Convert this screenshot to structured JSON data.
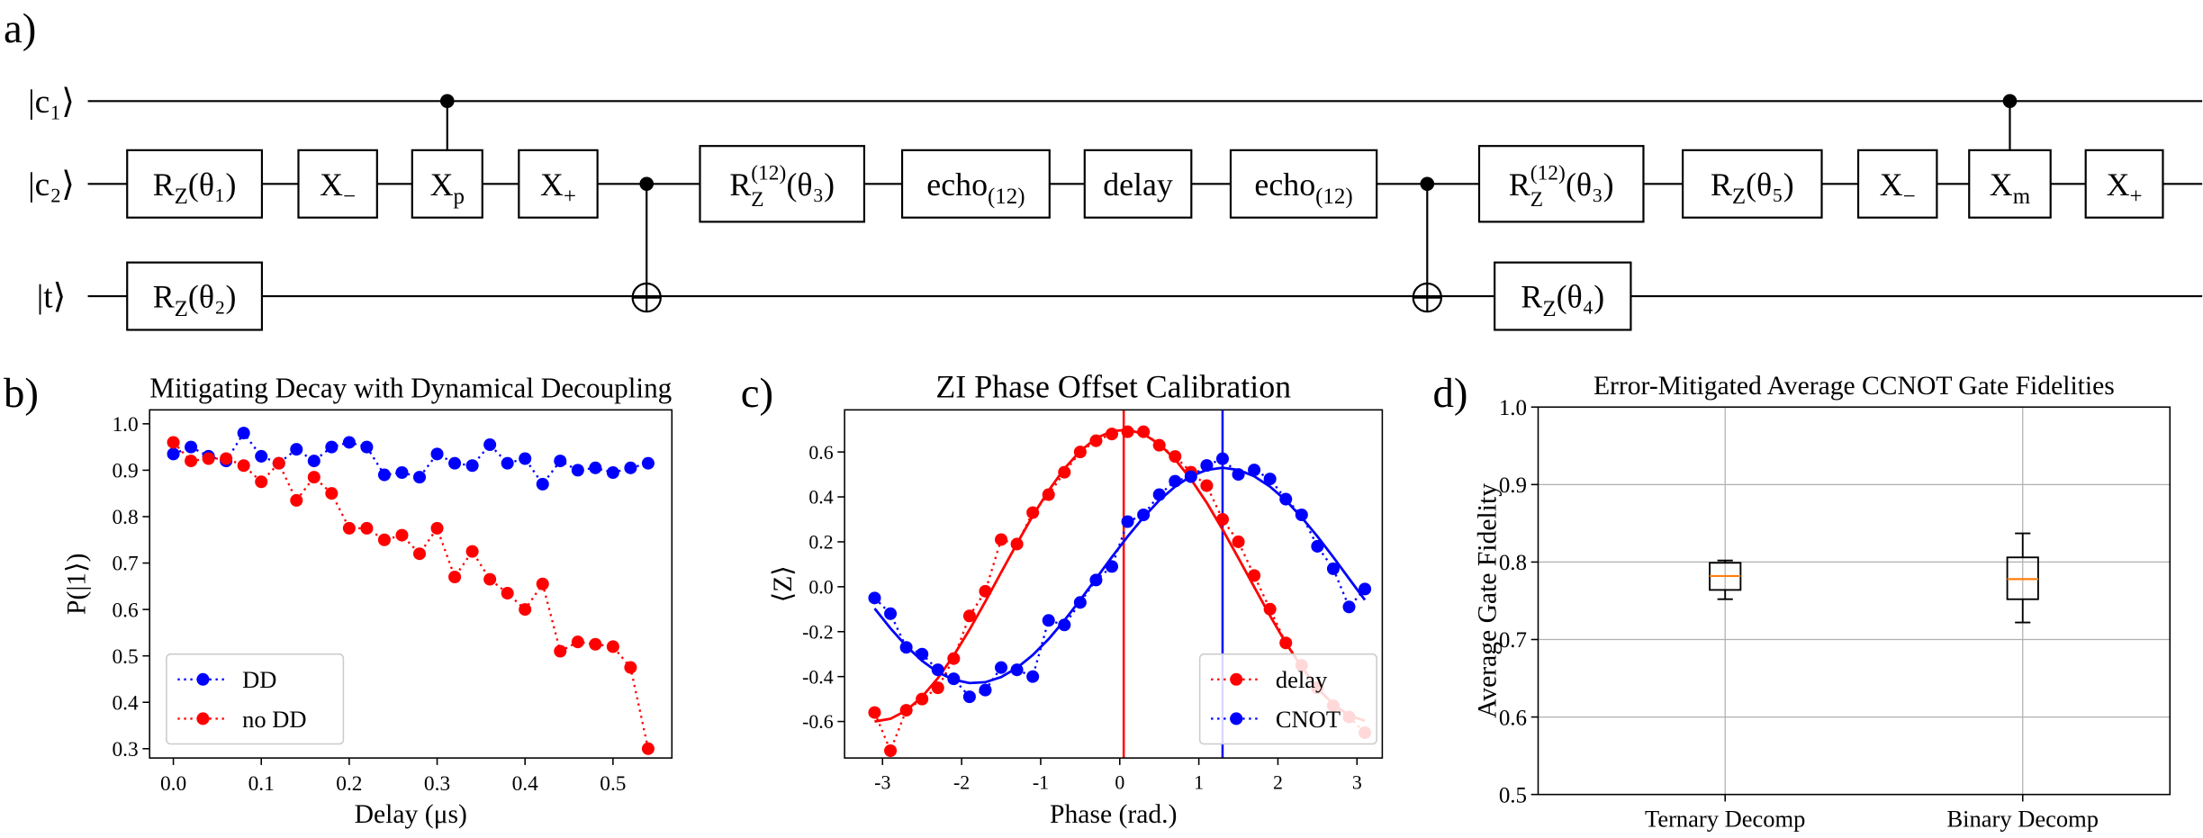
{
  "panel_labels": [
    "a)",
    "b)",
    "c)",
    "d)"
  ],
  "circuit": {
    "wires": [
      "|c₁⟩",
      "|c₂⟩",
      "|t⟩"
    ],
    "gates": [
      {
        "label": "R",
        "sub": "Z",
        "arg": "(θ₁)"
      },
      {
        "label": "X",
        "sub": "−"
      },
      {
        "label": "X",
        "sub": "p"
      },
      {
        "label": "X",
        "sub": "+"
      },
      {
        "label": "R",
        "sup": "(12)",
        "sub": "Z",
        "arg": "(θ₃)"
      },
      {
        "label": "echo",
        "sub": "(12)"
      },
      {
        "label": "delay"
      },
      {
        "label": "echo",
        "sub": "(12)"
      },
      {
        "label": "R",
        "sup": "(12)",
        "sub": "Z",
        "arg": "(θ₃)"
      },
      {
        "label": "R",
        "sub": "Z",
        "arg": "(θ₅)"
      },
      {
        "label": "X",
        "sub": "−"
      },
      {
        "label": "X",
        "sub": "m"
      },
      {
        "label": "X",
        "sub": "+"
      },
      {
        "label": "R",
        "sub": "Z",
        "arg": "(θ₂)"
      },
      {
        "label": "R",
        "sub": "Z",
        "arg": "(θ₄)"
      }
    ]
  },
  "chart_data": [
    {
      "type": "line",
      "title": "Mitigating Decay with Dynamical Decoupling",
      "xlabel": "Delay (μs)",
      "ylabel": "P(|1⟩)",
      "x": [
        0,
        0.02,
        0.04,
        0.06,
        0.08,
        0.1,
        0.12,
        0.14,
        0.16,
        0.18,
        0.2,
        0.22,
        0.24,
        0.26,
        0.28,
        0.3,
        0.32,
        0.34,
        0.36,
        0.38,
        0.4,
        0.42,
        0.44,
        0.46,
        0.48,
        0.5,
        0.52,
        0.54
      ],
      "series": [
        {
          "name": "DD",
          "color": "#0000ff",
          "values": [
            0.935,
            0.95,
            0.93,
            0.92,
            0.98,
            0.93,
            0.915,
            0.945,
            0.92,
            0.95,
            0.96,
            0.95,
            0.89,
            0.895,
            0.885,
            0.935,
            0.915,
            0.91,
            0.955,
            0.915,
            0.925,
            0.87,
            0.92,
            0.9,
            0.905,
            0.895,
            0.905,
            0.915
          ]
        },
        {
          "name": "no DD",
          "color": "#ff0000",
          "values": [
            0.96,
            0.92,
            0.925,
            0.925,
            0.91,
            0.875,
            0.915,
            0.835,
            0.885,
            0.85,
            0.775,
            0.775,
            0.75,
            0.76,
            0.72,
            0.775,
            0.67,
            0.725,
            0.665,
            0.635,
            0.6,
            0.655,
            0.51,
            0.53,
            0.525,
            0.52,
            0.475,
            0.3
          ]
        }
      ],
      "xlim": [
        -0.027,
        0.567
      ],
      "ylim": [
        0.28,
        1.03
      ],
      "xticks": [
        {
          "value": 0,
          "label": "0.0"
        },
        0.1,
        0.2,
        0.3,
        0.4,
        0.5
      ],
      "yticks": [
        0.3,
        0.4,
        0.5,
        0.6,
        0.7,
        0.8,
        0.9,
        {
          "value": 1,
          "label": "1.0"
        }
      ],
      "legend": "lower left"
    },
    {
      "type": "line",
      "title": "ZI Phase Offset Calibration",
      "xlabel": "Phase (rad.)",
      "ylabel": "⟨Z⟩",
      "x": [
        -3.1,
        -2.9,
        -2.7,
        -2.5,
        -2.3,
        -2.1,
        -1.9,
        -1.7,
        -1.5,
        -1.3,
        -1.1,
        -0.9,
        -0.7,
        -0.5,
        -0.3,
        -0.1,
        0.1,
        0.3,
        0.5,
        0.7,
        0.9,
        1.1,
        1.3,
        1.5,
        1.7,
        1.9,
        2.1,
        2.3,
        2.5,
        2.7,
        2.9,
        3.1
      ],
      "series": [
        {
          "name": "delay",
          "color": "#ff0000",
          "values": [
            -0.56,
            -0.73,
            -0.55,
            -0.5,
            -0.45,
            -0.32,
            -0.13,
            -0.02,
            0.21,
            0.19,
            0.33,
            0.41,
            0.51,
            0.6,
            0.65,
            0.68,
            0.69,
            0.69,
            0.63,
            0.58,
            0.51,
            0.45,
            0.3,
            0.2,
            0.05,
            -0.1,
            -0.25,
            -0.35,
            -0.45,
            -0.53,
            -0.58,
            -0.65
          ]
        },
        {
          "name": "CNOT",
          "color": "#0000ff",
          "values": [
            -0.05,
            -0.12,
            -0.27,
            -0.3,
            -0.37,
            -0.41,
            -0.49,
            -0.46,
            -0.36,
            -0.37,
            -0.4,
            -0.15,
            -0.17,
            -0.07,
            0.03,
            0.09,
            0.29,
            0.32,
            0.41,
            0.47,
            0.49,
            0.54,
            0.57,
            0.5,
            0.52,
            0.48,
            0.39,
            0.32,
            0.18,
            0.08,
            -0.09,
            -0.01
          ]
        }
      ],
      "fits": [
        {
          "color": "#ff0000",
          "values": [
            -0.6,
            -0.588,
            -0.551,
            -0.49,
            -0.407,
            -0.306,
            -0.191,
            -0.066,
            0.064,
            0.192,
            0.316,
            0.428,
            0.526,
            0.604,
            0.661,
            0.693,
            0.699,
            0.68,
            0.635,
            0.567,
            0.479,
            0.374,
            0.255,
            0.128,
            -0.001,
            -0.129,
            -0.25,
            -0.358,
            -0.451,
            -0.523,
            -0.573,
            -0.597
          ]
        },
        {
          "color": "#0000ff",
          "values": [
            -0.097,
            -0.185,
            -0.264,
            -0.33,
            -0.381,
            -0.414,
            -0.429,
            -0.425,
            -0.402,
            -0.361,
            -0.304,
            -0.233,
            -0.15,
            -0.059,
            0.036,
            0.132,
            0.224,
            0.309,
            0.385,
            0.446,
            0.492,
            0.52,
            0.53,
            0.52,
            0.492,
            0.446,
            0.385,
            0.309,
            0.224,
            0.132,
            0.036,
            -0.059
          ]
        }
      ],
      "vlines": [
        {
          "value": 0.05,
          "color": "#ff0000"
        },
        {
          "value": 1.3,
          "color": "#0000ff"
        }
      ],
      "xlim": [
        -3.48,
        3.32
      ],
      "ylim": [
        -0.7625,
        0.7875
      ],
      "xticks": [
        -3,
        -2,
        -1,
        0,
        1,
        2,
        3
      ],
      "yticks": [
        -0.6,
        -0.4,
        -0.2,
        {
          "value": 0,
          "label": "0.0"
        },
        0.2,
        0.4,
        0.6
      ],
      "legend": "lower right"
    },
    {
      "type": "box",
      "title": "Error-Mitigated Average CCNOT Gate Fidelities",
      "ylabel": "Average Gate Fidelity",
      "categories": [
        "Ternary Decomp",
        "Binary Decomp"
      ],
      "boxes": [
        {
          "whislo": 0.752,
          "q1": 0.764,
          "med": 0.782,
          "q3": 0.799,
          "whishi": 0.802
        },
        {
          "whislo": 0.722,
          "q1": 0.752,
          "med": 0.778,
          "q3": 0.806,
          "whishi": 0.837
        }
      ],
      "box_color": "#000000",
      "median_color": "#ff7f0e",
      "ylim": [
        0.5,
        1
      ],
      "yticks": [
        0.5,
        0.6,
        0.7,
        0.8,
        0.9,
        {
          "value": 1,
          "label": "1.0"
        }
      ],
      "grid": true
    }
  ]
}
